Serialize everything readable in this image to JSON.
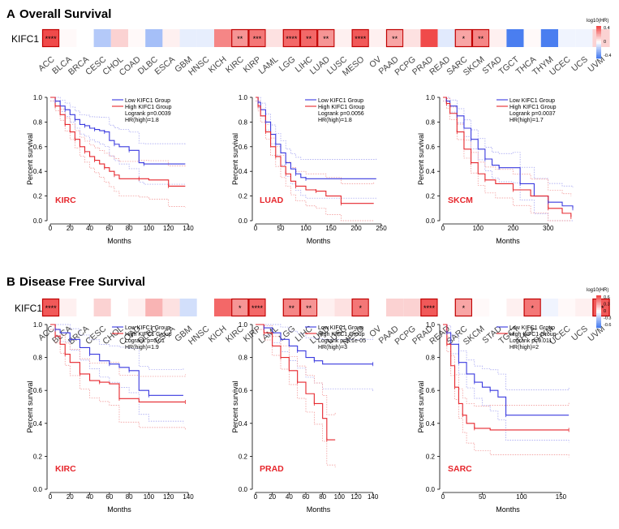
{
  "colors": {
    "red": "#e6262c",
    "blue": "#3a3adf",
    "lightred": "#f08c8c",
    "lightblue": "#9a9af0",
    "box": "#c00000",
    "scaleHigh": "#f04a4a",
    "scaleLow": "#4a7ef0"
  },
  "cancers": [
    "ACC",
    "BLCA",
    "BRCA",
    "CESC",
    "CHOL",
    "COAD",
    "DLBC",
    "ESCA",
    "GBM",
    "HNSC",
    "KICH",
    "KIRC",
    "KIRP",
    "LAML",
    "LGG",
    "LIHC",
    "LUAD",
    "LUSC",
    "MESO",
    "OV",
    "PAAD",
    "PCPG",
    "PRAD",
    "READ",
    "SARC",
    "SKCM",
    "STAD",
    "TGCT",
    "THCA",
    "THYM",
    "UCEC",
    "UCS",
    "UVM"
  ],
  "sections": [
    {
      "letter": "A",
      "title": "Overall Survival",
      "gene": "KIFC1",
      "heatmap": {
        "values": [
          0.6,
          0.02,
          0.0,
          -0.25,
          0.15,
          0.02,
          -0.3,
          0.05,
          -0.08,
          -0.08,
          0.4,
          0.35,
          0.45,
          0.1,
          0.5,
          0.5,
          0.35,
          0.05,
          0.55,
          0.05,
          0.3,
          0.1,
          0.6,
          -0.1,
          0.3,
          0.4,
          0.05,
          -0.6,
          0.02,
          -0.6,
          -0.05,
          -0.05,
          0.15
        ],
        "stars": {
          "0": "****",
          "11": "**",
          "12": "***",
          "14": "****",
          "15": "**",
          "16": "**",
          "18": "****",
          "20": "**",
          "24": "*",
          "25": "**"
        },
        "boxed": [
          0,
          11,
          12,
          14,
          15,
          16,
          18,
          20,
          24,
          25
        ],
        "legend": {
          "title": "log10(HR)",
          "ticks": [
            "0.4",
            "0",
            "-0.4"
          ]
        }
      },
      "plots": [
        {
          "cancer": "KIRC",
          "legend": [
            "Low KIFC1 Group",
            "High KIFC1 Group",
            "Logrank p=0.0039",
            "HR(high)=1.8"
          ],
          "xlabel": "Months",
          "ylabel": "Percent survival",
          "xlim": [
            0,
            140
          ],
          "xticks": [
            0,
            20,
            40,
            60,
            80,
            100,
            120,
            140
          ],
          "yticks": [
            0.0,
            0.2,
            0.4,
            0.6,
            0.8,
            1.0
          ],
          "low": [
            [
              0,
              1.0
            ],
            [
              5,
              0.97
            ],
            [
              10,
              0.93
            ],
            [
              15,
              0.9
            ],
            [
              20,
              0.86
            ],
            [
              25,
              0.82
            ],
            [
              30,
              0.78
            ],
            [
              35,
              0.77
            ],
            [
              40,
              0.75
            ],
            [
              45,
              0.74
            ],
            [
              50,
              0.73
            ],
            [
              55,
              0.72
            ],
            [
              60,
              0.65
            ],
            [
              65,
              0.62
            ],
            [
              70,
              0.6
            ],
            [
              80,
              0.57
            ],
            [
              90,
              0.47
            ],
            [
              95,
              0.46
            ],
            [
              137,
              0.46
            ]
          ],
          "high": [
            [
              0,
              1.0
            ],
            [
              5,
              0.93
            ],
            [
              10,
              0.86
            ],
            [
              15,
              0.78
            ],
            [
              20,
              0.72
            ],
            [
              25,
              0.66
            ],
            [
              30,
              0.6
            ],
            [
              35,
              0.56
            ],
            [
              40,
              0.52
            ],
            [
              45,
              0.49
            ],
            [
              50,
              0.46
            ],
            [
              55,
              0.43
            ],
            [
              60,
              0.4
            ],
            [
              65,
              0.37
            ],
            [
              70,
              0.34
            ],
            [
              90,
              0.34
            ],
            [
              100,
              0.33
            ],
            [
              120,
              0.28
            ],
            [
              137,
              0.28
            ]
          ]
        },
        {
          "cancer": "LUAD",
          "legend": [
            "Low KIFC1 Group",
            "High KIFC1 Group",
            "Logrank p=0.0056",
            "HR(high)=1.8"
          ],
          "xlabel": "Months",
          "ylabel": "Percent survival",
          "xlim": [
            0,
            250
          ],
          "xticks": [
            0,
            50,
            100,
            150,
            200,
            250
          ],
          "yticks": [
            0.0,
            0.2,
            0.4,
            0.6,
            0.8,
            1.0
          ],
          "low": [
            [
              0,
              1.0
            ],
            [
              5,
              0.96
            ],
            [
              10,
              0.9
            ],
            [
              20,
              0.8
            ],
            [
              30,
              0.7
            ],
            [
              40,
              0.62
            ],
            [
              50,
              0.55
            ],
            [
              60,
              0.47
            ],
            [
              70,
              0.42
            ],
            [
              80,
              0.38
            ],
            [
              90,
              0.35
            ],
            [
              100,
              0.34
            ],
            [
              240,
              0.34
            ]
          ],
          "high": [
            [
              0,
              1.0
            ],
            [
              5,
              0.93
            ],
            [
              10,
              0.85
            ],
            [
              20,
              0.72
            ],
            [
              30,
              0.6
            ],
            [
              40,
              0.52
            ],
            [
              50,
              0.44
            ],
            [
              60,
              0.38
            ],
            [
              70,
              0.32
            ],
            [
              80,
              0.28
            ],
            [
              100,
              0.25
            ],
            [
              120,
              0.24
            ],
            [
              140,
              0.2
            ],
            [
              170,
              0.14
            ],
            [
              235,
              0.14
            ]
          ]
        },
        {
          "cancer": "SKCM",
          "legend": [
            "Low KIFC1 Group",
            "High KIFC1 Group",
            "Logrank p=0.0037",
            "HR(high)=1.7"
          ],
          "xlabel": "Months",
          "ylabel": "Percent survival",
          "xlim": [
            0,
            370
          ],
          "xticks": [
            0,
            100,
            200,
            300
          ],
          "yticks": [
            0.0,
            0.2,
            0.4,
            0.6,
            0.8,
            1.0
          ],
          "low": [
            [
              0,
              1.0
            ],
            [
              10,
              0.97
            ],
            [
              20,
              0.93
            ],
            [
              40,
              0.85
            ],
            [
              60,
              0.75
            ],
            [
              80,
              0.66
            ],
            [
              100,
              0.58
            ],
            [
              120,
              0.5
            ],
            [
              140,
              0.45
            ],
            [
              160,
              0.43
            ],
            [
              200,
              0.43
            ],
            [
              220,
              0.3
            ],
            [
              260,
              0.2
            ],
            [
              300,
              0.15
            ],
            [
              340,
              0.12
            ],
            [
              370,
              0.1
            ]
          ],
          "high": [
            [
              0,
              1.0
            ],
            [
              10,
              0.95
            ],
            [
              20,
              0.87
            ],
            [
              40,
              0.72
            ],
            [
              60,
              0.58
            ],
            [
              80,
              0.47
            ],
            [
              100,
              0.38
            ],
            [
              120,
              0.33
            ],
            [
              150,
              0.3
            ],
            [
              200,
              0.25
            ],
            [
              250,
              0.2
            ],
            [
              300,
              0.1
            ],
            [
              340,
              0.06
            ],
            [
              365,
              0.03
            ]
          ]
        }
      ]
    },
    {
      "letter": "B",
      "title": "Disease Free Survival",
      "gene": "KIFC1",
      "heatmap": {
        "values": [
          0.55,
          0.05,
          0.0,
          0.15,
          0.0,
          0.05,
          0.25,
          0.1,
          -0.15,
          0.0,
          0.5,
          0.35,
          0.5,
          0.0,
          0.4,
          0.35,
          0.05,
          0.1,
          0.45,
          0.0,
          0.15,
          0.15,
          0.55,
          0.0,
          0.3,
          0.02,
          0.0,
          0.05,
          0.45,
          -0.05,
          0.02,
          0.05,
          0.55
        ],
        "stars": {
          "0": "****",
          "11": "*",
          "12": "****",
          "14": "**",
          "15": "**",
          "18": "*",
          "22": "****",
          "24": "*",
          "28": "*",
          "32": "**"
        },
        "boxed": [
          0,
          11,
          12,
          14,
          15,
          18,
          22,
          24,
          28,
          32
        ],
        "legend": {
          "title": "log10(HR)",
          "ticks": [
            "0.6",
            "0.3",
            "0",
            "-0.3",
            "-0.6"
          ]
        }
      },
      "plots": [
        {
          "cancer": "KIRC",
          "legend": [
            "Low KIFC1 Group",
            "High KIFC1 Group",
            "Logrank p=0.01",
            "HR(high)=1.9"
          ],
          "xlabel": "Months",
          "ylabel": "Percent survival",
          "xlim": [
            0,
            140
          ],
          "xticks": [
            0,
            20,
            40,
            60,
            80,
            100,
            120,
            140
          ],
          "yticks": [
            0.0,
            0.2,
            0.4,
            0.6,
            0.8,
            1.0
          ],
          "low": [
            [
              0,
              1.0
            ],
            [
              5,
              0.97
            ],
            [
              10,
              0.95
            ],
            [
              20,
              0.91
            ],
            [
              30,
              0.86
            ],
            [
              40,
              0.82
            ],
            [
              50,
              0.78
            ],
            [
              60,
              0.76
            ],
            [
              70,
              0.74
            ],
            [
              80,
              0.72
            ],
            [
              90,
              0.6
            ],
            [
              100,
              0.57
            ],
            [
              135,
              0.57
            ]
          ],
          "high": [
            [
              0,
              1.0
            ],
            [
              5,
              0.93
            ],
            [
              10,
              0.88
            ],
            [
              15,
              0.82
            ],
            [
              20,
              0.77
            ],
            [
              30,
              0.7
            ],
            [
              40,
              0.66
            ],
            [
              50,
              0.65
            ],
            [
              60,
              0.64
            ],
            [
              70,
              0.55
            ],
            [
              90,
              0.53
            ],
            [
              137,
              0.53
            ]
          ]
        },
        {
          "cancer": "PRAD",
          "legend": [
            "Low KIFC1 Group",
            "High KIFC1 Group",
            "Logrank p=8.1e-05",
            "HR(high)=3"
          ],
          "xlabel": "Months",
          "ylabel": "Percent survival",
          "xlim": [
            0,
            150
          ],
          "xticks": [
            0,
            20,
            40,
            60,
            80,
            100,
            120,
            140
          ],
          "yticks": [
            0.0,
            0.2,
            0.4,
            0.6,
            0.8,
            1.0
          ],
          "low": [
            [
              0,
              1.0
            ],
            [
              10,
              0.98
            ],
            [
              20,
              0.95
            ],
            [
              30,
              0.91
            ],
            [
              40,
              0.87
            ],
            [
              50,
              0.84
            ],
            [
              60,
              0.8
            ],
            [
              70,
              0.78
            ],
            [
              80,
              0.76
            ],
            [
              140,
              0.76
            ]
          ],
          "high": [
            [
              0,
              1.0
            ],
            [
              10,
              0.95
            ],
            [
              20,
              0.87
            ],
            [
              30,
              0.8
            ],
            [
              40,
              0.72
            ],
            [
              50,
              0.65
            ],
            [
              60,
              0.58
            ],
            [
              70,
              0.52
            ],
            [
              80,
              0.43
            ],
            [
              85,
              0.3
            ],
            [
              95,
              0.3
            ]
          ]
        },
        {
          "cancer": "SARC",
          "legend": [
            "Low KIFC1 Group",
            "High KIFC1 Group",
            "Logrank p=0.011",
            "HR(high)=2"
          ],
          "xlabel": "Months",
          "ylabel": "Percent survival",
          "xlim": [
            0,
            165
          ],
          "xticks": [
            0,
            50,
            100,
            150
          ],
          "yticks": [
            0.0,
            0.2,
            0.4,
            0.6,
            0.8,
            1.0
          ],
          "low": [
            [
              0,
              1.0
            ],
            [
              5,
              0.95
            ],
            [
              10,
              0.88
            ],
            [
              20,
              0.77
            ],
            [
              30,
              0.7
            ],
            [
              40,
              0.65
            ],
            [
              50,
              0.62
            ],
            [
              60,
              0.6
            ],
            [
              70,
              0.56
            ],
            [
              80,
              0.45
            ],
            [
              160,
              0.45
            ]
          ],
          "high": [
            [
              0,
              1.0
            ],
            [
              5,
              0.88
            ],
            [
              10,
              0.75
            ],
            [
              15,
              0.62
            ],
            [
              20,
              0.52
            ],
            [
              25,
              0.45
            ],
            [
              30,
              0.4
            ],
            [
              40,
              0.37
            ],
            [
              60,
              0.36
            ],
            [
              160,
              0.36
            ]
          ]
        }
      ]
    }
  ],
  "chart_data": [
    {
      "type": "heatmap",
      "title": "Overall Survival",
      "row": "KIFC1",
      "legend_title": "log10(HR)"
    },
    {
      "type": "line",
      "title": "KIRC Overall Survival",
      "xlabel": "Months",
      "ylabel": "Percent survival",
      "series": [
        {
          "name": "Low KIFC1 Group"
        },
        {
          "name": "High KIFC1 Group"
        }
      ]
    },
    {
      "type": "line",
      "title": "LUAD Overall Survival",
      "xlabel": "Months",
      "ylabel": "Percent survival",
      "series": [
        {
          "name": "Low KIFC1 Group"
        },
        {
          "name": "High KIFC1 Group"
        }
      ]
    },
    {
      "type": "line",
      "title": "SKCM Overall Survival",
      "xlabel": "Months",
      "ylabel": "Percent survival",
      "series": [
        {
          "name": "Low KIFC1 Group"
        },
        {
          "name": "High KIFC1 Group"
        }
      ]
    },
    {
      "type": "heatmap",
      "title": "Disease Free Survival",
      "row": "KIFC1",
      "legend_title": "log10(HR)"
    },
    {
      "type": "line",
      "title": "KIRC Disease Free Survival",
      "xlabel": "Months",
      "ylabel": "Percent survival",
      "series": [
        {
          "name": "Low KIFC1 Group"
        },
        {
          "name": "High KIFC1 Group"
        }
      ]
    },
    {
      "type": "line",
      "title": "PRAD Disease Free Survival",
      "xlabel": "Months",
      "ylabel": "Percent survival",
      "series": [
        {
          "name": "Low KIFC1 Group"
        },
        {
          "name": "High KIFC1 Group"
        }
      ]
    },
    {
      "type": "line",
      "title": "SARC Disease Free Survival",
      "xlabel": "Months",
      "ylabel": "Percent survival",
      "series": [
        {
          "name": "Low KIFC1 Group"
        },
        {
          "name": "High KIFC1 Group"
        }
      ]
    }
  ]
}
